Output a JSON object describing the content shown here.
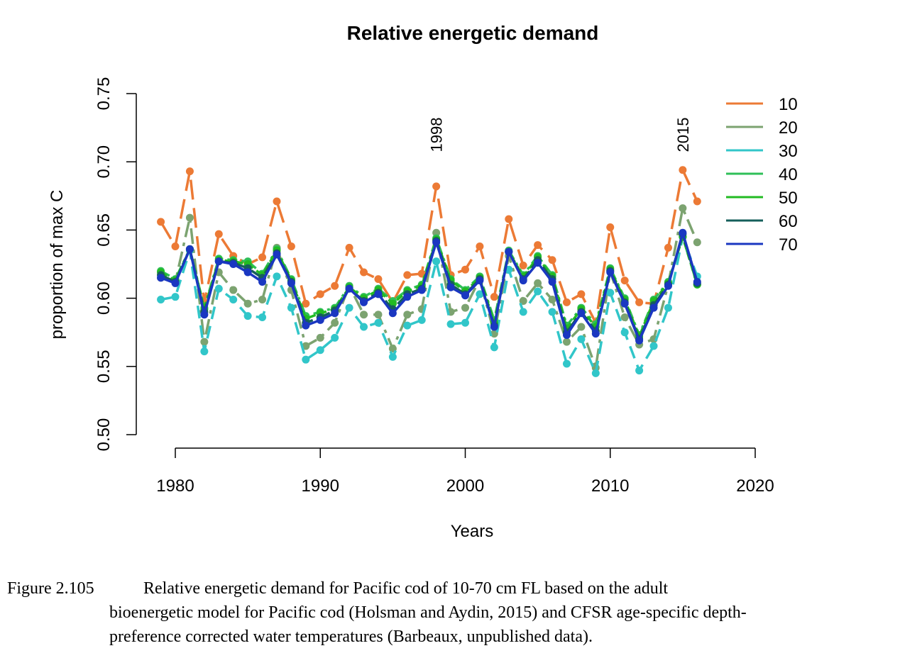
{
  "chart_data": {
    "type": "line",
    "title": "Relative energetic demand",
    "xlabel": "Years",
    "ylabel": "proportion of max C",
    "xlim": [
      1980,
      2020
    ],
    "ylim": [
      0.5,
      0.75
    ],
    "x_ticks": [
      "1980",
      "1990",
      "2000",
      "2010",
      "2020"
    ],
    "y_ticks": [
      "0.50",
      "0.55",
      "0.60",
      "0.65",
      "0.70",
      "0.75"
    ],
    "legend_position": "top-right",
    "x": [
      1979,
      1980,
      1981,
      1982,
      1983,
      1984,
      1985,
      1986,
      1987,
      1988,
      1989,
      1990,
      1991,
      1992,
      1993,
      1994,
      1995,
      1996,
      1997,
      1998,
      1999,
      2000,
      2001,
      2002,
      2003,
      2004,
      2005,
      2006,
      2007,
      2008,
      2009,
      2010,
      2011,
      2012,
      2013,
      2014,
      2015,
      2016
    ],
    "series": [
      {
        "name": "10",
        "color": "#ec7a35",
        "values": [
          0.656,
          0.638,
          0.693,
          0.597,
          0.647,
          0.631,
          0.625,
          0.63,
          0.671,
          0.638,
          0.596,
          0.603,
          0.609,
          0.637,
          0.619,
          0.614,
          0.597,
          0.617,
          0.618,
          0.682,
          0.617,
          0.621,
          0.638,
          0.601,
          0.658,
          0.624,
          0.639,
          0.628,
          0.597,
          0.603,
          0.582,
          0.652,
          0.613,
          0.597,
          0.596,
          0.637,
          0.694,
          0.671
        ]
      },
      {
        "name": "20",
        "color": "#7ca370",
        "values": [
          0.615,
          0.612,
          0.659,
          0.568,
          0.619,
          0.606,
          0.596,
          0.599,
          0.637,
          0.606,
          0.565,
          0.571,
          0.582,
          0.609,
          0.588,
          0.588,
          0.563,
          0.588,
          0.592,
          0.648,
          0.59,
          0.593,
          0.614,
          0.574,
          0.631,
          0.598,
          0.611,
          0.599,
          0.568,
          0.579,
          0.549,
          0.62,
          0.586,
          0.566,
          0.57,
          0.61,
          0.666,
          0.641
        ]
      },
      {
        "name": "30",
        "color": "#31c6c9",
        "values": [
          0.599,
          0.601,
          0.635,
          0.561,
          0.607,
          0.599,
          0.587,
          0.586,
          0.616,
          0.593,
          0.555,
          0.562,
          0.571,
          0.593,
          0.579,
          0.582,
          0.557,
          0.58,
          0.584,
          0.627,
          0.581,
          0.582,
          0.603,
          0.564,
          0.621,
          0.59,
          0.605,
          0.59,
          0.552,
          0.57,
          0.545,
          0.604,
          0.575,
          0.547,
          0.565,
          0.593,
          0.645,
          0.616
        ]
      },
      {
        "name": "40",
        "color": "#2fbf58",
        "values": [
          0.62,
          0.614,
          0.636,
          0.593,
          0.629,
          0.628,
          0.627,
          0.618,
          0.636,
          0.614,
          0.587,
          0.59,
          0.593,
          0.609,
          0.601,
          0.607,
          0.598,
          0.606,
          0.61,
          0.644,
          0.614,
          0.606,
          0.616,
          0.584,
          0.635,
          0.617,
          0.631,
          0.617,
          0.58,
          0.593,
          0.581,
          0.622,
          0.6,
          0.573,
          0.599,
          0.612,
          0.645,
          0.61
        ]
      },
      {
        "name": "50",
        "color": "#22bb22",
        "values": [
          0.619,
          0.613,
          0.636,
          0.592,
          0.628,
          0.627,
          0.625,
          0.617,
          0.635,
          0.613,
          0.585,
          0.589,
          0.592,
          0.608,
          0.6,
          0.606,
          0.596,
          0.605,
          0.609,
          0.643,
          0.613,
          0.605,
          0.615,
          0.582,
          0.634,
          0.616,
          0.63,
          0.616,
          0.578,
          0.592,
          0.579,
          0.621,
          0.599,
          0.572,
          0.598,
          0.611,
          0.645,
          0.61
        ]
      },
      {
        "name": "60",
        "color": "#155f5b",
        "values": [
          0.617,
          0.612,
          0.636,
          0.59,
          0.627,
          0.626,
          0.622,
          0.615,
          0.633,
          0.612,
          0.582,
          0.586,
          0.591,
          0.607,
          0.598,
          0.604,
          0.592,
          0.603,
          0.607,
          0.642,
          0.61,
          0.603,
          0.614,
          0.58,
          0.634,
          0.614,
          0.628,
          0.614,
          0.575,
          0.59,
          0.576,
          0.62,
          0.597,
          0.57,
          0.595,
          0.61,
          0.647,
          0.611
        ]
      },
      {
        "name": "70",
        "color": "#1a37c1",
        "values": [
          0.615,
          0.611,
          0.636,
          0.588,
          0.627,
          0.625,
          0.619,
          0.612,
          0.632,
          0.611,
          0.58,
          0.584,
          0.589,
          0.607,
          0.597,
          0.603,
          0.589,
          0.601,
          0.606,
          0.641,
          0.608,
          0.602,
          0.613,
          0.579,
          0.634,
          0.613,
          0.626,
          0.612,
          0.573,
          0.589,
          0.574,
          0.619,
          0.596,
          0.569,
          0.593,
          0.609,
          0.648,
          0.612
        ]
      }
    ],
    "annotations": [
      {
        "text": "1998",
        "x": 1998
      },
      {
        "text": "2015",
        "x": 2015
      }
    ]
  },
  "caption": {
    "label": "Figure 2.105",
    "line1": "Relative energetic demand for Pacific cod of 10-70 cm FL based on the adult",
    "line2": "bioenergetic model for Pacific cod (Holsman and Aydin, 2015) and CFSR age-specific depth-",
    "line3": "preference corrected water temperatures (Barbeaux, unpublished data)."
  }
}
